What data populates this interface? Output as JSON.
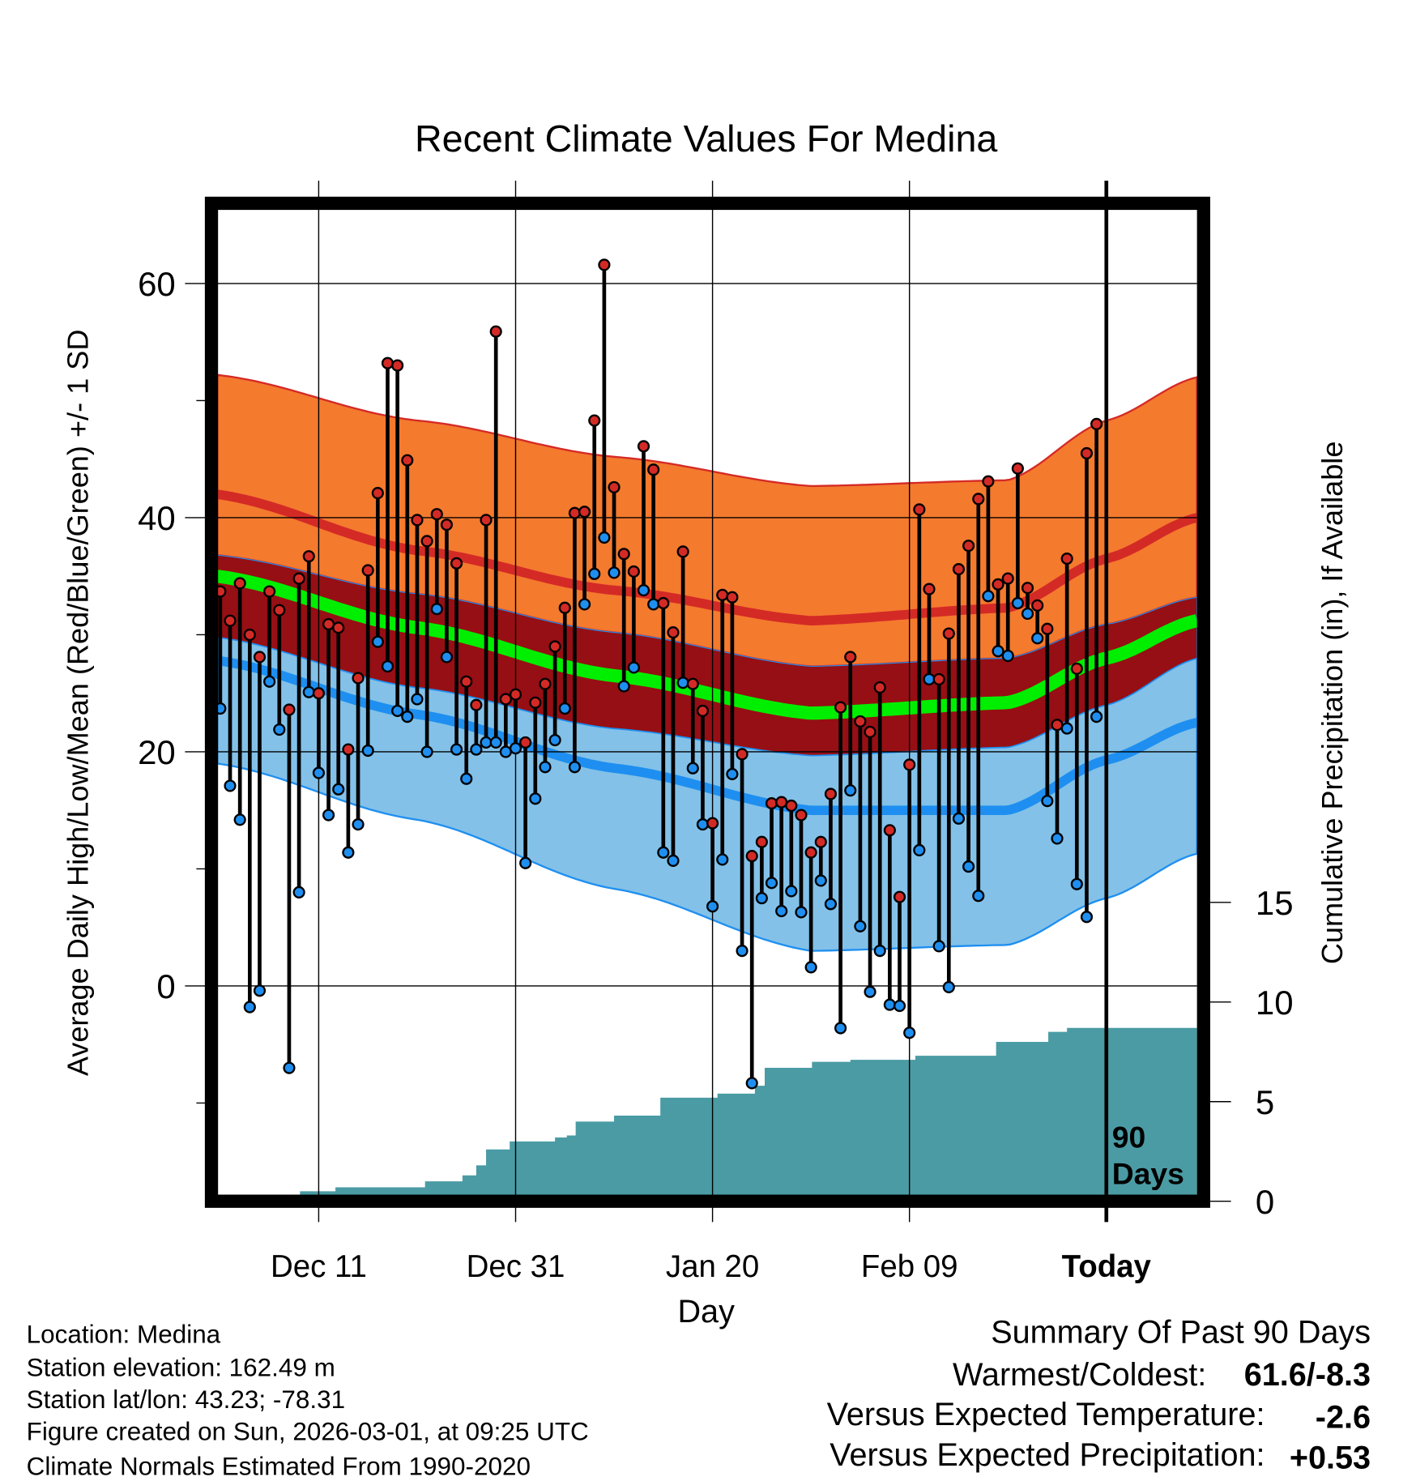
{
  "chart_data": {
    "type": "line",
    "title": "Recent Climate Values For Medina",
    "xlabel": "Day",
    "ylabel": "Average Daily High/Low/Mean (Red/Blue/Green) +/- 1 SD",
    "y2label": "Cumulative Precipitation (in), If Available",
    "xlim_days_from_today": [
      -90.3,
      9.2
    ],
    "ylim": [
      -17.7,
      66.3
    ],
    "y2lim": [
      0,
      40
    ],
    "yticks": [
      "60",
      "40",
      "20",
      "0"
    ],
    "yticks_values": [
      60,
      40,
      20,
      0
    ],
    "y2ticks": [
      "15",
      "10",
      "5",
      "0"
    ],
    "y2ticks_values": [
      15,
      10,
      5,
      0
    ],
    "xticks": [
      "Dec 11",
      "Dec 31",
      "Jan 20",
      "Feb 09",
      "Today"
    ],
    "xticks_days_from_today": [
      -80,
      -60,
      -40,
      -20,
      0
    ],
    "today_annotation": [
      "90",
      "Days"
    ],
    "grid": true,
    "normals": {
      "days_from_today": [
        -90.3,
        -70,
        -50,
        -30,
        -10,
        0,
        9.2
      ],
      "high_plus_sd": [
        52.2,
        48.3,
        45.2,
        42.7,
        43.2,
        48.3,
        52.0
      ],
      "high_mean": [
        42.0,
        37.2,
        33.8,
        31.2,
        32.3,
        36.5,
        40.0
      ],
      "high_minus_sd": [
        36.8,
        33.5,
        30.2,
        27.3,
        28.0,
        30.9,
        33.2
      ],
      "mean": [
        35.0,
        30.6,
        26.5,
        23.3,
        24.2,
        28.0,
        31.2
      ],
      "low_plus_sd": [
        29.8,
        25.5,
        22.0,
        19.7,
        20.4,
        24.0,
        28.0
      ],
      "low_mean": [
        27.8,
        23.2,
        18.6,
        15.0,
        15.0,
        19.3,
        22.5
      ],
      "low_minus_sd": [
        19.0,
        14.2,
        8.3,
        3.0,
        3.5,
        7.5,
        11.3
      ]
    },
    "daily_start_days_from_today": -90,
    "highs": [
      33.7,
      31.2,
      34.4,
      30.0,
      28.1,
      33.7,
      32.1,
      23.6,
      34.8,
      36.7,
      25.0,
      30.9,
      30.6,
      20.2,
      26.3,
      35.5,
      42.1,
      53.2,
      53.0,
      44.9,
      39.8,
      38.0,
      40.3,
      39.4,
      36.1,
      26.0,
      24.0,
      39.8,
      55.9,
      24.5,
      24.9,
      20.8,
      24.2,
      25.8,
      29.0,
      32.3,
      40.4,
      40.5,
      48.3,
      61.6,
      42.6,
      36.9,
      35.4,
      46.1,
      44.1,
      32.7,
      30.2,
      37.1,
      25.8,
      23.5,
      13.9,
      33.4,
      33.2,
      19.8,
      11.1,
      12.3,
      15.6,
      15.7,
      15.4,
      14.6,
      11.4,
      12.3,
      16.4,
      23.8,
      28.1,
      22.6,
      21.7,
      25.5,
      13.3,
      7.6,
      18.9,
      40.7,
      33.9,
      26.2,
      30.1,
      35.6,
      37.6,
      41.6,
      43.1,
      34.3,
      34.8,
      44.2,
      34.0,
      32.5,
      30.5,
      22.3,
      36.5,
      27.1,
      45.5,
      48.0
    ],
    "lows": [
      23.7,
      17.1,
      14.2,
      -1.8,
      -0.4,
      26.0,
      21.9,
      -7.0,
      8.0,
      25.1,
      18.2,
      14.6,
      16.8,
      11.4,
      13.8,
      20.1,
      29.4,
      27.3,
      23.5,
      23.0,
      24.5,
      20.0,
      32.2,
      28.1,
      20.2,
      17.7,
      20.2,
      20.8,
      20.8,
      20.0,
      20.3,
      10.5,
      16.0,
      18.7,
      21.0,
      23.7,
      18.7,
      32.6,
      35.2,
      38.3,
      35.3,
      25.6,
      27.2,
      33.8,
      32.6,
      11.4,
      10.7,
      25.9,
      18.6,
      13.8,
      6.8,
      10.8,
      18.1,
      3.0,
      -8.3,
      7.5,
      8.8,
      6.4,
      8.1,
      6.3,
      1.6,
      9.0,
      7.0,
      -3.6,
      16.7,
      5.1,
      -0.5,
      3.0,
      -1.6,
      -1.7,
      -4.0,
      11.6,
      26.2,
      3.4,
      -0.1,
      14.3,
      10.2,
      7.7,
      33.3,
      28.6,
      28.2,
      32.7,
      31.8,
      29.7,
      15.8,
      12.6,
      22.0,
      8.7,
      5.9,
      23.0
    ],
    "precip_cumulative_steps": [
      [
        -90.3,
        0
      ],
      [
        -81.9,
        0.5
      ],
      [
        -78.3,
        0.7
      ],
      [
        -73,
        0.7
      ],
      [
        -69.2,
        1.0
      ],
      [
        -65.4,
        1.3
      ],
      [
        -64,
        1.8
      ],
      [
        -63,
        2.6
      ],
      [
        -60.6,
        3.0
      ],
      [
        -56,
        3.2
      ],
      [
        -54.8,
        3.3
      ],
      [
        -53.9,
        4.0
      ],
      [
        -50,
        4.3
      ],
      [
        -45.3,
        5.2
      ],
      [
        -39.5,
        5.4
      ],
      [
        -35.7,
        5.8
      ],
      [
        -34.7,
        6.7
      ],
      [
        -29.9,
        7.0
      ],
      [
        -26,
        7.1
      ],
      [
        -19.4,
        7.3
      ],
      [
        -11.2,
        8.0
      ],
      [
        -5.9,
        8.5
      ],
      [
        -4,
        8.7
      ],
      [
        9.2,
        8.7
      ]
    ]
  },
  "colors": {
    "high_band": "#f47a2e",
    "high_line": "#d42a26",
    "mid_band": "#960f14",
    "mean_line": "#00ee00",
    "low_band": "#83c1e8",
    "low_line": "#1e8ff0",
    "precip": "#4a9ba4",
    "high_dot": "#d42a26",
    "low_dot": "#1e8ff0",
    "temp_anomaly": "#1e8ff0",
    "precip_anomaly": "#22dd22"
  },
  "footer": {
    "location": "Location: Medina",
    "elevation": "Station elevation: 162.49 m",
    "latlon": "Station lat/lon: 43.23; -78.31",
    "created": "Figure created on Sun, 2026-03-01, at 09:25 UTC",
    "normals": "Climate Normals Estimated From 1990-2020"
  },
  "summary": {
    "title": "Summary Of Past 90 Days",
    "warmest_coldest_label": "Warmest/Coldest:",
    "warmest_coldest_value": "61.6/-8.3",
    "temp_label": "Versus Expected Temperature:",
    "temp_value": "-2.6",
    "precip_label": "Versus Expected Precipitation:",
    "precip_value": "+0.53"
  }
}
